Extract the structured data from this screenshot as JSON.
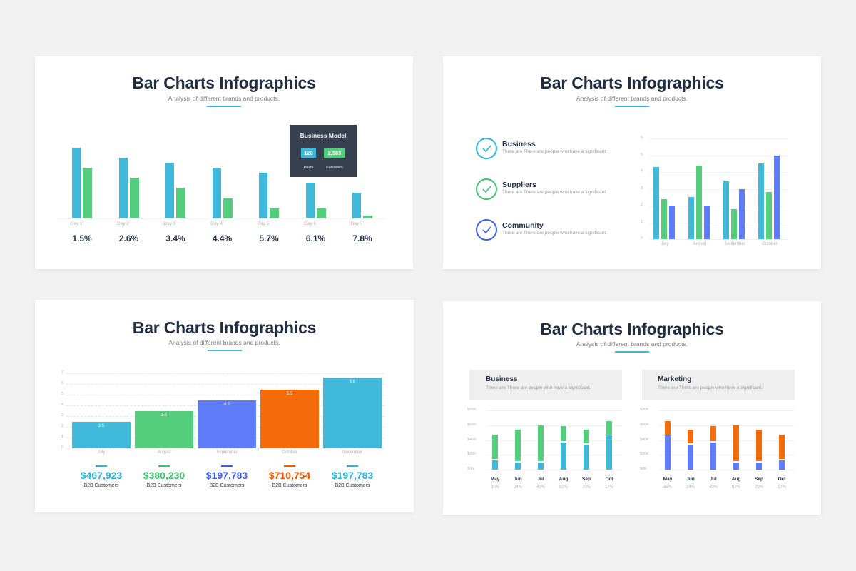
{
  "colors": {
    "cyan": "#3fb8da",
    "green": "#54cd7d",
    "blue": "#5e7cf8",
    "orange": "#f46b0a",
    "navy": "#1f2d45",
    "dark_box": "#37404e"
  },
  "panels": [
    {
      "title": "Bar Charts Infographics",
      "subtitle": "Analysis of different brands and products.",
      "days": [
        "Day 1",
        "Day 2",
        "Day 3",
        "Day 4",
        "Day 5",
        "Day 6",
        "Day 7"
      ],
      "percents": [
        "1.5%",
        "2.6%",
        "3.4%",
        "4.4%",
        "5.7%",
        "6.1%",
        "7.8%"
      ],
      "business_model": {
        "title": "Business Model",
        "posts_value": "120",
        "posts_label": "Posts",
        "followers_value": "2,569",
        "followers_label": "Followers"
      }
    },
    {
      "title": "Bar Charts Infographics",
      "subtitle": "Analysis of different brands and products.",
      "items": [
        {
          "title": "Business",
          "desc": "There are There are people who have a significant.",
          "color": "#2bb3dc"
        },
        {
          "title": "Suppliers",
          "desc": "There are There are people who have a significant.",
          "color": "#3cc46b"
        },
        {
          "title": "Community",
          "desc": "There are There are people who have a significant.",
          "color": "#3b5bf0"
        }
      ],
      "y_ticks": [
        "6",
        "5",
        "4",
        "3",
        "2",
        "1",
        "0"
      ],
      "months": [
        "July",
        "August",
        "September",
        "October"
      ]
    },
    {
      "title": "Bar Charts Infographics",
      "subtitle": "Analysis of different brands and products.",
      "y_ticks": [
        "7",
        "6",
        "5",
        "4",
        "3",
        "2",
        "1",
        "0"
      ],
      "months": [
        "July",
        "August",
        "September",
        "October",
        "November"
      ],
      "bar_labels": [
        "2.5",
        "3.5",
        "4.5",
        "5.5",
        "6.6"
      ],
      "stats": [
        {
          "value": "$467,923",
          "label": "B2B Customers",
          "color": "#2bb3dc"
        },
        {
          "value": "$380,230",
          "label": "B2B Customers",
          "color": "#3cc46b"
        },
        {
          "value": "$197,783",
          "label": "B2B Customers",
          "color": "#3b5bf0"
        },
        {
          "value": "$710,754",
          "label": "B2B Customers",
          "color": "#f05a05"
        },
        {
          "value": "$197,783",
          "label": "B2B Customers",
          "color": "#2bb3dc"
        }
      ]
    },
    {
      "title": "Bar Charts Infographics",
      "subtitle": "Analysis of different brands and products.",
      "y_ticks": [
        "$80K",
        "$60K",
        "$40K",
        "$20K",
        "$0K"
      ],
      "months": [
        "May",
        "Jun",
        "Jul",
        "Aug",
        "Sep",
        "Oct"
      ],
      "percents": [
        "35%",
        "24%",
        "40%",
        "62%",
        "70%",
        "17%"
      ],
      "business": {
        "title": "Business",
        "desc": "There are There are people who have a significant."
      },
      "marketing": {
        "title": "Marketing",
        "desc": "There are There are people who have a significant."
      }
    }
  ],
  "chart_data": [
    {
      "type": "bar",
      "title": "Bar Charts Infographics",
      "subtitle": "Analysis of different brands and products.",
      "categories": [
        "Day 1",
        "Day 2",
        "Day 3",
        "Day 4",
        "Day 5",
        "Day 6",
        "Day 7"
      ],
      "series": [
        {
          "name": "Series 1 (cyan)",
          "values": [
            99,
            85,
            78,
            71,
            64,
            50,
            36
          ]
        },
        {
          "name": "Series 2 (green)",
          "values": [
            71,
            57,
            43,
            28,
            14,
            14,
            4
          ]
        }
      ],
      "data_labels": [
        "1.5%",
        "2.6%",
        "3.4%",
        "4.4%",
        "5.7%",
        "6.1%",
        "7.8%"
      ],
      "annotation": {
        "title": "Business Model",
        "Posts": 120,
        "Followers": 2569
      },
      "xlabel": "",
      "ylabel": "",
      "grid": false,
      "note": "no y-axis; values are relative bar heights"
    },
    {
      "type": "bar",
      "title": "Bar Charts Infographics",
      "categories": [
        "July",
        "August",
        "September",
        "October"
      ],
      "series": [
        {
          "name": "Business",
          "values": [
            4.3,
            2.5,
            3.5,
            4.5
          ]
        },
        {
          "name": "Suppliers",
          "values": [
            2.4,
            4.4,
            1.8,
            2.8
          ]
        },
        {
          "name": "Community",
          "values": [
            2.0,
            2.0,
            3.0,
            5.0
          ]
        }
      ],
      "ylim": [
        0,
        6
      ],
      "grid": true,
      "legend_position": "left"
    },
    {
      "type": "bar",
      "title": "Bar Charts Infographics",
      "categories": [
        "July",
        "August",
        "September",
        "October",
        "November"
      ],
      "values": [
        2.5,
        3.5,
        4.5,
        5.5,
        6.6
      ],
      "ylim": [
        0,
        7
      ],
      "grid": true,
      "footer_values": [
        "$467,923",
        "$380,230",
        "$197,783",
        "$710,754",
        "$197,783"
      ],
      "footer_label": "B2B Customers"
    },
    {
      "type": "bar",
      "stacked": true,
      "title": "Business",
      "categories": [
        "May",
        "Jun",
        "Jul",
        "Aug",
        "Sep",
        "Oct"
      ],
      "series": [
        {
          "name": "Bottom (cyan)",
          "values": [
            13,
            10,
            10,
            37,
            34,
            46
          ]
        },
        {
          "name": "Top (green)",
          "values": [
            34,
            44,
            50,
            22,
            20,
            20
          ]
        }
      ],
      "percents": [
        "35%",
        "24%",
        "40%",
        "62%",
        "70%",
        "17%"
      ],
      "ylabel": "$K",
      "ylim": [
        0,
        80
      ],
      "grid": true
    },
    {
      "type": "bar",
      "stacked": true,
      "title": "Marketing",
      "categories": [
        "May",
        "Jun",
        "Jul",
        "Aug",
        "Sep",
        "Oct"
      ],
      "series": [
        {
          "name": "Bottom (blue)",
          "values": [
            46,
            34,
            37,
            10,
            10,
            13
          ]
        },
        {
          "name": "Top (orange)",
          "values": [
            20,
            20,
            22,
            50,
            44,
            34
          ]
        }
      ],
      "percents": [
        "35%",
        "24%",
        "40%",
        "62%",
        "70%",
        "17%"
      ],
      "ylabel": "$K",
      "ylim": [
        0,
        80
      ],
      "grid": true
    }
  ]
}
